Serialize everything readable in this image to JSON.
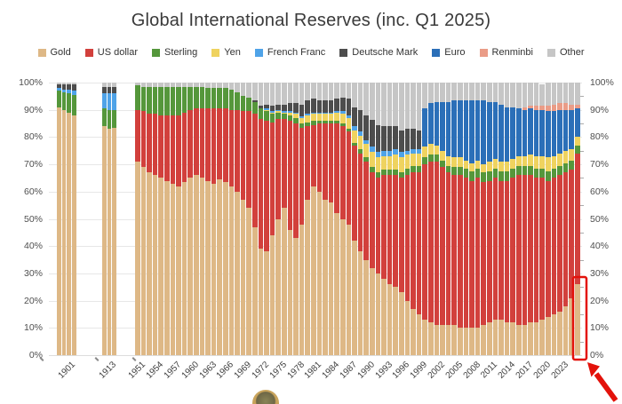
{
  "title": "Global International Reserves (inc. Q1 2025)",
  "legend": [
    {
      "label": "Gold",
      "color": "#DEB886"
    },
    {
      "label": "US dollar",
      "color": "#D2403C"
    },
    {
      "label": "Sterling",
      "color": "#55973B"
    },
    {
      "label": "Yen",
      "color": "#EFD35F"
    },
    {
      "label": "French Franc",
      "color": "#4FA3E8"
    },
    {
      "label": "Deutsche Mark",
      "color": "#4D4D4D"
    },
    {
      "label": "Euro",
      "color": "#2B6FB8"
    },
    {
      "label": "Renminbi",
      "color": "#EA9C87"
    },
    {
      "label": "Other",
      "color": "#C6C6C6"
    }
  ],
  "annotations": {
    "highlight": "red box around Q1 2025 gold share with red arrow pointing at it"
  },
  "chart_data": {
    "type": "bar",
    "stacked": true,
    "percent": true,
    "title": "Global International Reserves (inc. Q1 2025)",
    "ylim": [
      0,
      100
    ],
    "grid": true,
    "legend_position": "top",
    "y_tick_labels": [
      "0%",
      "10%",
      "20%",
      "30%",
      "40%",
      "50%",
      "60%",
      "70%",
      "80%",
      "90%",
      "100%"
    ],
    "x_tick_labels": [
      "1901",
      "1913",
      "1951",
      "1954",
      "1957",
      "1960",
      "1963",
      "1966",
      "1969",
      "1972",
      "1975",
      "1978",
      "1981",
      "1984",
      "1987",
      "1990",
      "1993",
      "1996",
      "1999",
      "2002",
      "2005",
      "2008",
      "2011",
      "2014",
      "2017",
      "2020",
      "2023"
    ],
    "series_names": [
      "Gold",
      "US dollar",
      "Sterling",
      "Yen",
      "French Franc",
      "Deutsche Mark",
      "Euro",
      "Renminbi",
      "Other"
    ],
    "series_colors": [
      "#DEB886",
      "#D2403C",
      "#55973B",
      "#EFD35F",
      "#4FA3E8",
      "#4D4D4D",
      "#2B6FB8",
      "#EA9C87",
      "#C6C6C6"
    ],
    "bars": [
      {
        "y": 1899,
        "v": [
          91,
          0,
          6,
          0,
          1,
          1.5,
          0,
          0,
          0.5
        ]
      },
      {
        "y": 1900,
        "v": [
          90,
          0,
          6.5,
          0,
          1,
          2,
          0,
          0,
          0.5
        ]
      },
      {
        "y": 1901,
        "v": [
          89,
          0,
          7,
          0,
          1.5,
          2,
          0,
          0,
          0.5
        ]
      },
      {
        "y": 1902,
        "v": [
          88,
          0,
          7.5,
          0,
          1.5,
          2.5,
          0,
          0,
          0.5
        ]
      },
      {
        "y": 1912,
        "v": [
          84,
          0,
          6.5,
          0,
          5.5,
          2.5,
          0,
          0,
          1.5
        ]
      },
      {
        "y": 1913,
        "v": [
          83,
          0,
          7,
          0,
          6,
          2.5,
          0,
          0,
          1.5
        ]
      },
      {
        "y": 1914,
        "v": [
          83.5,
          0,
          6.5,
          0,
          6,
          2.5,
          0,
          0,
          1.5
        ]
      },
      {
        "y": 1950,
        "v": [
          71,
          19,
          9,
          0,
          0,
          0,
          0,
          0,
          1
        ]
      },
      {
        "y": 1951,
        "v": [
          69,
          20.5,
          9,
          0,
          0,
          0,
          0,
          0,
          1.5
        ]
      },
      {
        "y": 1952,
        "v": [
          67,
          21.5,
          10,
          0,
          0,
          0,
          0,
          0,
          1.5
        ]
      },
      {
        "y": 1953,
        "v": [
          66,
          22.5,
          10,
          0,
          0,
          0,
          0,
          0,
          1.5
        ]
      },
      {
        "y": 1954,
        "v": [
          65,
          23,
          10.5,
          0,
          0,
          0,
          0,
          0,
          1.5
        ]
      },
      {
        "y": 1955,
        "v": [
          64,
          24,
          10.5,
          0,
          0,
          0,
          0,
          0,
          1.5
        ]
      },
      {
        "y": 1956,
        "v": [
          63,
          25,
          10.5,
          0,
          0,
          0,
          0,
          0,
          1.5
        ]
      },
      {
        "y": 1957,
        "v": [
          62,
          26,
          10.5,
          0,
          0,
          0,
          0,
          0,
          1.5
        ]
      },
      {
        "y": 1958,
        "v": [
          63.5,
          25.5,
          9.5,
          0,
          0,
          0,
          0,
          0,
          1.5
        ]
      },
      {
        "y": 1959,
        "v": [
          65,
          25,
          8.5,
          0,
          0,
          0,
          0,
          0,
          1.5
        ]
      },
      {
        "y": 1960,
        "v": [
          66,
          24.5,
          8,
          0,
          0,
          0,
          0,
          0,
          1.5
        ]
      },
      {
        "y": 1961,
        "v": [
          65,
          25.5,
          8,
          0,
          0,
          0,
          0,
          0,
          1.5
        ]
      },
      {
        "y": 1962,
        "v": [
          64,
          26.5,
          7.5,
          0,
          0,
          0,
          0,
          0,
          2
        ]
      },
      {
        "y": 1963,
        "v": [
          63,
          27.5,
          7.5,
          0,
          0,
          0,
          0,
          0,
          2
        ]
      },
      {
        "y": 1964,
        "v": [
          64.5,
          26,
          7.5,
          0,
          0,
          0,
          0,
          0,
          2
        ]
      },
      {
        "y": 1965,
        "v": [
          63.5,
          27,
          7.5,
          0,
          0,
          0,
          0,
          0,
          2
        ]
      },
      {
        "y": 1966,
        "v": [
          62,
          28,
          7.5,
          0,
          0,
          0,
          0,
          0,
          2.5
        ]
      },
      {
        "y": 1967,
        "v": [
          60,
          30,
          6.5,
          0,
          0,
          0,
          0,
          0,
          3.5
        ]
      },
      {
        "y": 1968,
        "v": [
          57,
          32.5,
          5.5,
          0,
          0,
          0,
          0,
          0,
          5
        ]
      },
      {
        "y": 1969,
        "v": [
          54,
          35.5,
          5,
          0,
          0,
          0,
          0,
          0,
          5.5
        ]
      },
      {
        "y": 1970,
        "v": [
          47,
          41.5,
          4.5,
          0,
          0,
          0.5,
          0,
          0,
          6.5
        ]
      },
      {
        "y": 1971,
        "v": [
          39,
          47.5,
          4,
          0,
          0,
          1,
          0,
          0,
          8.5
        ]
      },
      {
        "y": 1972,
        "v": [
          38,
          48,
          3.5,
          0.5,
          0.5,
          1.5,
          0,
          0,
          8
        ]
      },
      {
        "y": 1973,
        "v": [
          44,
          41.5,
          3,
          0.5,
          0.5,
          2,
          0,
          0,
          8.5
        ]
      },
      {
        "y": 1974,
        "v": [
          50,
          36.5,
          2.5,
          0.5,
          0.5,
          2,
          0,
          0,
          8
        ]
      },
      {
        "y": 1975,
        "v": [
          54,
          32.5,
          2,
          0.5,
          0.5,
          2.5,
          0,
          0,
          8
        ]
      },
      {
        "y": 1976,
        "v": [
          46,
          40,
          2,
          1,
          0.5,
          3,
          0,
          0,
          7.5
        ]
      },
      {
        "y": 1977,
        "v": [
          43,
          42,
          2,
          1.5,
          0.5,
          3.5,
          0,
          0,
          7.5
        ]
      },
      {
        "y": 1978,
        "v": [
          48,
          35.5,
          1.5,
          2,
          0.5,
          4.5,
          0,
          0,
          8
        ]
      },
      {
        "y": 1979,
        "v": [
          57,
          27,
          1.5,
          2.5,
          0.5,
          5,
          0,
          0,
          6.5
        ]
      },
      {
        "y": 1980,
        "v": [
          62,
          22.5,
          1.5,
          2.5,
          0.5,
          5,
          0,
          0,
          6
        ]
      },
      {
        "y": 1981,
        "v": [
          60,
          25,
          1,
          2.5,
          0.5,
          4.5,
          0,
          0,
          6.5
        ]
      },
      {
        "y": 1982,
        "v": [
          57,
          28,
          1,
          2.5,
          0.5,
          4.5,
          0,
          0,
          6.5
        ]
      },
      {
        "y": 1983,
        "v": [
          56,
          29,
          1,
          2.5,
          0.5,
          4.5,
          0,
          0,
          6.5
        ]
      },
      {
        "y": 1984,
        "v": [
          52,
          33,
          1,
          3,
          0.5,
          4.5,
          0,
          0,
          6
        ]
      },
      {
        "y": 1985,
        "v": [
          50,
          34,
          1,
          3.5,
          1,
          5,
          0,
          0,
          5.5
        ]
      },
      {
        "y": 1986,
        "v": [
          48,
          34,
          1,
          4,
          1,
          6,
          0,
          0,
          6
        ]
      },
      {
        "y": 1987,
        "v": [
          42,
          35,
          1,
          4.5,
          1.5,
          7,
          0,
          0,
          9
        ]
      },
      {
        "y": 1988,
        "v": [
          38,
          36,
          1.5,
          5,
          1.5,
          8,
          0,
          0,
          10
        ]
      },
      {
        "y": 1989,
        "v": [
          35,
          36,
          1.5,
          5,
          1.5,
          9,
          0,
          0,
          12
        ]
      },
      {
        "y": 1990,
        "v": [
          32,
          35,
          2,
          5.5,
          2,
          10,
          0,
          0,
          13.5
        ]
      },
      {
        "y": 1991,
        "v": [
          30,
          35,
          2,
          5.5,
          2,
          10,
          0,
          0,
          15.5
        ]
      },
      {
        "y": 1992,
        "v": [
          28,
          38,
          2,
          5,
          2,
          9,
          0,
          0,
          16
        ]
      },
      {
        "y": 1993,
        "v": [
          26,
          40,
          2,
          5,
          2,
          9,
          0,
          0,
          16
        ]
      },
      {
        "y": 1994,
        "v": [
          25,
          41,
          2,
          5.5,
          2,
          8.5,
          0,
          0,
          16
        ]
      },
      {
        "y": 1995,
        "v": [
          23,
          42,
          2,
          5.5,
          2,
          8,
          0,
          0,
          17.5
        ]
      },
      {
        "y": 1996,
        "v": [
          20,
          46,
          2.5,
          5,
          1.5,
          8,
          0,
          0,
          17
        ]
      },
      {
        "y": 1997,
        "v": [
          17,
          50,
          2.5,
          4.5,
          1.5,
          7.5,
          0,
          0,
          17
        ]
      },
      {
        "y": 1998,
        "v": [
          15,
          52,
          2.5,
          4.5,
          1.5,
          7,
          0,
          0,
          17.5
        ]
      },
      {
        "y": 1999,
        "v": [
          13,
          57,
          2.5,
          4,
          0,
          0,
          14,
          0,
          9.5
        ]
      },
      {
        "y": 2000,
        "v": [
          12,
          59,
          2.5,
          4,
          0,
          0,
          15,
          0,
          7.5
        ]
      },
      {
        "y": 2001,
        "v": [
          11,
          60,
          2.5,
          3.5,
          0,
          0,
          16,
          0,
          7
        ]
      },
      {
        "y": 2002,
        "v": [
          11,
          58,
          2.5,
          3.5,
          0,
          0,
          18,
          0,
          7
        ]
      },
      {
        "y": 2003,
        "v": [
          11,
          56,
          2.5,
          3.5,
          0,
          0,
          20,
          0,
          7
        ]
      },
      {
        "y": 2004,
        "v": [
          11,
          55,
          3,
          3.5,
          0,
          0,
          21,
          0,
          6.5
        ]
      },
      {
        "y": 2005,
        "v": [
          10,
          56,
          3,
          3.5,
          0,
          0,
          21,
          0,
          6.5
        ]
      },
      {
        "y": 2006,
        "v": [
          10,
          55,
          3.5,
          3,
          0,
          0,
          22,
          0,
          6.5
        ]
      },
      {
        "y": 2007,
        "v": [
          10,
          54,
          3.5,
          3,
          0,
          0,
          23,
          0,
          6.5
        ]
      },
      {
        "y": 2008,
        "v": [
          10,
          55,
          3.5,
          3,
          0,
          0,
          22,
          0,
          6.5
        ]
      },
      {
        "y": 2009,
        "v": [
          11,
          52.5,
          3.5,
          3,
          0,
          0,
          23.5,
          0,
          6.5
        ]
      },
      {
        "y": 2010,
        "v": [
          12,
          52,
          3.5,
          3.5,
          0,
          0,
          22,
          0,
          7
        ]
      },
      {
        "y": 2011,
        "v": [
          13,
          52,
          3.5,
          3.5,
          0,
          0,
          21,
          0,
          7
        ]
      },
      {
        "y": 2012,
        "v": [
          13,
          51,
          3.5,
          3.5,
          0,
          0,
          21,
          0,
          8
        ]
      },
      {
        "y": 2013,
        "v": [
          12,
          52,
          3.5,
          3.5,
          0,
          0,
          20,
          0,
          9
        ]
      },
      {
        "y": 2014,
        "v": [
          12,
          53,
          3.5,
          3.5,
          0,
          0,
          19,
          0,
          9
        ]
      },
      {
        "y": 2015,
        "v": [
          11,
          55,
          3.5,
          3.5,
          0,
          0,
          17.5,
          0,
          9.5
        ]
      },
      {
        "y": 2016,
        "v": [
          11,
          55,
          3.5,
          3.5,
          0,
          0,
          17,
          1,
          9
        ]
      },
      {
        "y": 2017,
        "v": [
          12,
          54,
          3.5,
          4,
          0,
          0,
          17,
          1,
          8.5
        ]
      },
      {
        "y": 2018,
        "v": [
          12,
          53,
          3.5,
          4.5,
          0,
          0,
          17,
          1.5,
          8.5
        ]
      },
      {
        "y": 2019,
        "v": [
          13,
          52,
          3.5,
          4.5,
          0,
          0,
          17,
          1.5,
          8
        ]
      },
      {
        "y": 2020,
        "v": [
          14,
          50,
          3.5,
          5,
          0,
          0,
          17,
          2,
          8.5
        ]
      },
      {
        "y": 2021,
        "v": [
          15,
          50,
          3.5,
          4.5,
          0,
          0,
          16.5,
          2.5,
          8
        ]
      },
      {
        "y": 2022,
        "v": [
          16,
          50,
          3.5,
          4.5,
          0,
          0,
          16,
          2.5,
          7.5
        ]
      },
      {
        "y": 2023,
        "v": [
          18,
          49,
          3.5,
          4.5,
          0,
          0,
          15,
          2.5,
          7.5
        ]
      },
      {
        "y": 2024,
        "v": [
          21,
          47,
          3.5,
          4,
          0,
          0,
          14.5,
          2,
          8
        ]
      },
      {
        "y": 2025,
        "v": [
          26,
          48,
          3,
          3,
          0,
          0,
          10.5,
          1.5,
          8
        ]
      }
    ]
  }
}
